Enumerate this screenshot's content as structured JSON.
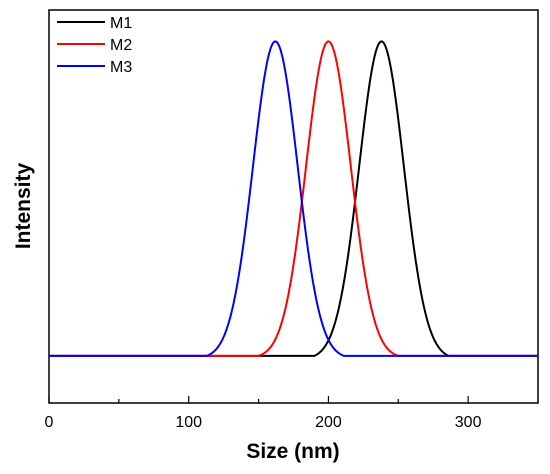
{
  "chart_data": {
    "type": "line",
    "xlabel": "Size (nm)",
    "ylabel": "Intensity",
    "xlim": [
      0,
      350
    ],
    "ylim": [
      -0.15,
      1.1
    ],
    "x_ticks": [
      0,
      100,
      200,
      300
    ],
    "x_tick_labels": [
      "0",
      "100",
      "200",
      "300"
    ],
    "x_minor_ticks": [
      50,
      150,
      250
    ],
    "y_ticks_labeled": false,
    "grid": false,
    "legend_position": "top-left",
    "series": [
      {
        "name": "M1",
        "color": "#000000",
        "peak_x": 238,
        "sigma": 16,
        "start_x": 190,
        "end_x": 290,
        "peak_y": 1.0
      },
      {
        "name": "M2",
        "color": "#ff0000",
        "peak_x": 200,
        "sigma": 16,
        "start_x": 150,
        "end_x": 252,
        "peak_y": 1.0
      },
      {
        "name": "M3",
        "color": "#0000ff",
        "peak_x": 162,
        "sigma": 16,
        "start_x": 113,
        "end_x": 213,
        "peak_y": 1.0
      }
    ]
  }
}
